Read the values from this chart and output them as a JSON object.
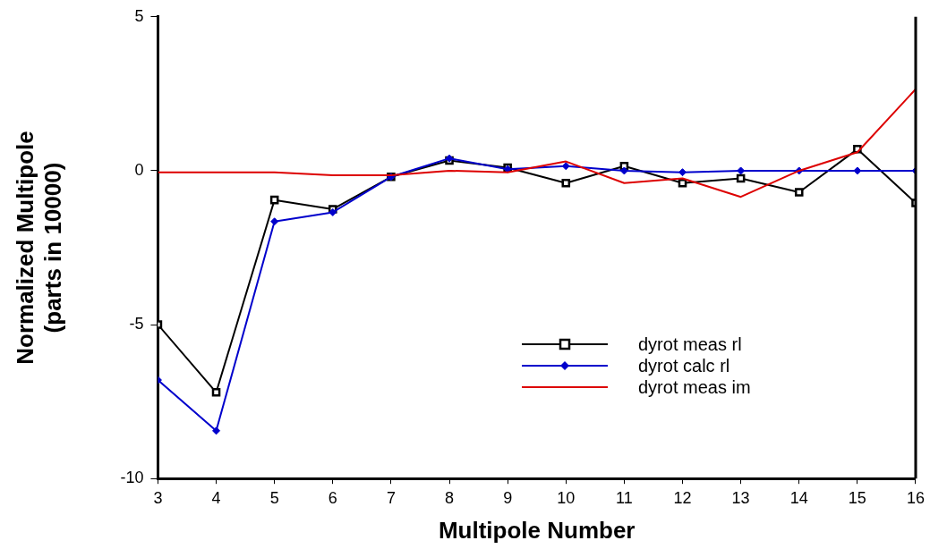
{
  "chart_data": {
    "type": "line",
    "xlabel": "Multipole Number",
    "ylabel": "Normalized Multipole\n(parts in 10000)",
    "x": [
      3,
      4,
      5,
      6,
      7,
      8,
      9,
      10,
      11,
      12,
      13,
      14,
      15,
      16
    ],
    "xlim": [
      3,
      16
    ],
    "xticks": [
      3,
      4,
      5,
      6,
      7,
      8,
      9,
      10,
      11,
      12,
      13,
      14,
      15,
      16
    ],
    "ylim": [
      -10,
      5
    ],
    "yticks": [
      -10,
      -5,
      0,
      5
    ],
    "grid": false,
    "legend": "bottom right",
    "series": [
      {
        "name": "dyrot meas rl",
        "color": "#000000",
        "marker": "square",
        "values": [
          -5.0,
          -7.2,
          -0.95,
          -1.25,
          -0.2,
          0.33,
          0.1,
          -0.4,
          0.15,
          -0.4,
          -0.25,
          -0.7,
          0.7,
          -1.05
        ]
      },
      {
        "name": "dyrot calc rl",
        "color": "#0000cc",
        "marker": "diamond",
        "values": [
          -6.8,
          -8.45,
          -1.65,
          -1.35,
          -0.2,
          0.4,
          0.05,
          0.15,
          0,
          -0.05,
          0,
          0,
          0,
          0
        ]
      },
      {
        "name": "dyrot meas im",
        "color": "#dd0000",
        "marker": "none",
        "values": [
          -0.05,
          -0.05,
          -0.05,
          -0.15,
          -0.15,
          0,
          -0.05,
          0.3,
          -0.4,
          -0.25,
          -0.85,
          0,
          0.6,
          2.65
        ]
      }
    ]
  }
}
